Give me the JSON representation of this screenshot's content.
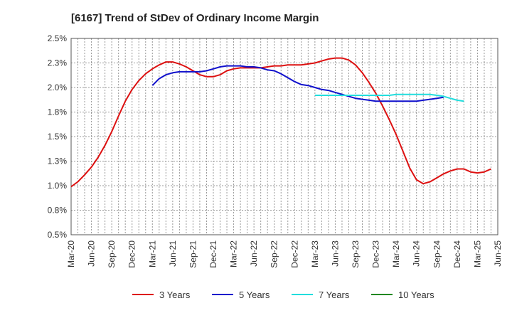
{
  "chart_data": {
    "type": "line",
    "title": "[6167]  Trend of StDev of Ordinary Income Margin",
    "xlabel": "",
    "ylabel": "",
    "x_ticks": [
      "Mar-20",
      "Jun-20",
      "Sep-20",
      "Dec-20",
      "Mar-21",
      "Jun-21",
      "Sep-21",
      "Dec-21",
      "Mar-22",
      "Jun-22",
      "Sep-22",
      "Dec-22",
      "Mar-23",
      "Jun-23",
      "Sep-23",
      "Dec-23",
      "Mar-24",
      "Jun-24",
      "Sep-24",
      "Dec-24",
      "Mar-25",
      "Jun-25"
    ],
    "y_ticks": [
      "0.5%",
      "0.8%",
      "1.0%",
      "1.3%",
      "1.5%",
      "1.8%",
      "2.0%",
      "2.3%",
      "2.5%"
    ],
    "ylim": [
      0.5,
      2.5
    ],
    "grid": true,
    "legend_position": "bottom",
    "series": [
      {
        "name": "3 Years",
        "color": "#dd1111",
        "start": "Mar-20",
        "values": [
          0.99,
          1.04,
          1.11,
          1.19,
          1.29,
          1.41,
          1.55,
          1.71,
          1.86,
          1.98,
          2.07,
          2.14,
          2.19,
          2.23,
          2.26,
          2.26,
          2.24,
          2.21,
          2.17,
          2.13,
          2.11,
          2.11,
          2.13,
          2.17,
          2.19,
          2.2,
          2.2,
          2.2,
          2.2,
          2.21,
          2.22,
          2.22,
          2.23,
          2.23,
          2.23,
          2.24,
          2.25,
          2.27,
          2.29,
          2.3,
          2.3,
          2.28,
          2.23,
          2.15,
          2.05,
          1.94,
          1.81,
          1.67,
          1.52,
          1.35,
          1.18,
          1.06,
          1.02,
          1.04,
          1.08,
          1.12,
          1.15,
          1.17,
          1.17,
          1.14,
          1.13,
          1.14,
          1.17
        ]
      },
      {
        "name": "5 Years",
        "color": "#1111cc",
        "start": "Mar-21",
        "values": [
          2.02,
          2.09,
          2.13,
          2.15,
          2.16,
          2.16,
          2.16,
          2.16,
          2.17,
          2.19,
          2.21,
          2.22,
          2.22,
          2.22,
          2.21,
          2.21,
          2.2,
          2.18,
          2.17,
          2.14,
          2.1,
          2.06,
          2.03,
          2.02,
          2.0,
          1.98,
          1.97,
          1.95,
          1.93,
          1.91,
          1.89,
          1.88,
          1.87,
          1.86,
          1.86,
          1.86,
          1.86,
          1.86,
          1.86,
          1.86,
          1.87,
          1.88,
          1.89,
          1.9
        ]
      },
      {
        "name": "7 Years",
        "color": "#22dddd",
        "start": "Mar-23",
        "values": [
          1.92,
          1.92,
          1.92,
          1.92,
          1.92,
          1.92,
          1.92,
          1.92,
          1.92,
          1.92,
          1.92,
          1.92,
          1.93,
          1.93,
          1.93,
          1.93,
          1.93,
          1.93,
          1.92,
          1.91,
          1.89,
          1.87,
          1.86
        ]
      },
      {
        "name": "10 Years",
        "color": "#228822",
        "start": "Mar-20",
        "values": []
      }
    ]
  }
}
